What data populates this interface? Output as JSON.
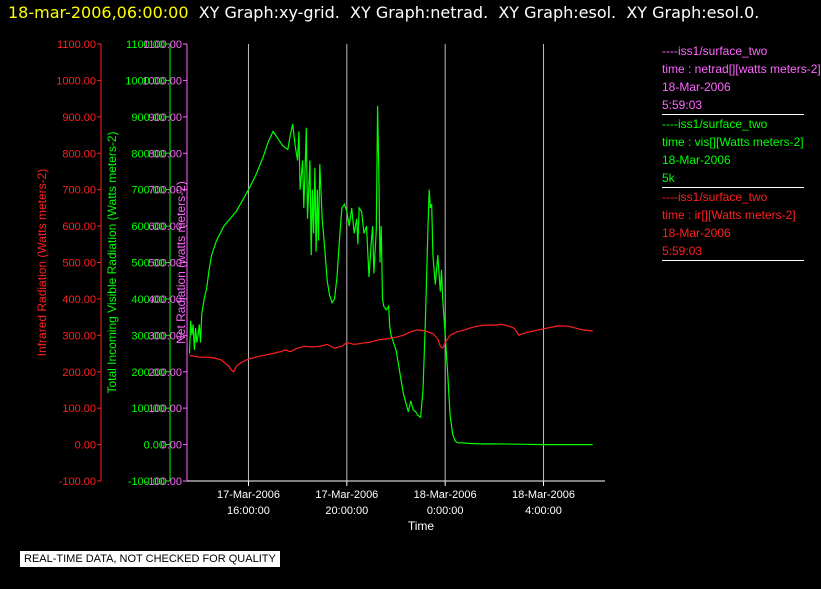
{
  "header": {
    "timestamp": "18-mar-2006,06:00:00",
    "titles": [
      "XY Graph:xy-grid.",
      "XY Graph:netrad.",
      "XY Graph:esol.",
      "XY Graph:esol.0."
    ]
  },
  "legend": {
    "entries": [
      {
        "lines": [
          "----iss1/surface_two",
          "time : netrad[][watts meters-2]",
          "18-Mar-2006",
          "5:59:03"
        ],
        "color": "#ff66ff"
      },
      {
        "lines": [
          "----iss1/surface_two",
          "time : vis[][Watts meters-2]",
          "18-Mar-2006",
          "5k"
        ],
        "color": "#00ff00"
      },
      {
        "lines": [
          "----iss1/surface_two",
          "time : ir[][Watts meters-2]",
          "18-Mar-2006",
          "5:59:03"
        ],
        "color": "#ff2020"
      }
    ]
  },
  "colors": {
    "ir": "#ff2020",
    "vis": "#00ff00",
    "netrad": "#ff66ff",
    "time_axis": "#ffffff",
    "grid": "#c0c0c0"
  },
  "notice": "REAL-TIME DATA, NOT CHECKED FOR QUALITY",
  "chart_data": {
    "type": "line",
    "xlabel": "Time",
    "x_ticks": [
      {
        "x": 16,
        "lines": [
          "17-Mar-2006",
          "16:00:00"
        ]
      },
      {
        "x": 20,
        "lines": [
          "17-Mar-2006",
          "20:00:00"
        ]
      },
      {
        "x": 24,
        "lines": [
          "18-Mar-2006",
          "0:00:00"
        ]
      },
      {
        "x": 28,
        "lines": [
          "18-Mar-2006",
          "4:00:00"
        ]
      }
    ],
    "xlim": [
      13.5,
      30.5
    ],
    "ylim": [
      -100,
      1100
    ],
    "y_ticks": [
      "-100.00",
      "0.00",
      "100.00",
      "200.00",
      "300.00",
      "400.00",
      "500.00",
      "600.00",
      "700.00",
      "800.00",
      "900.00",
      "1000.00",
      "1100.00"
    ],
    "axes": [
      {
        "id": "ir",
        "label": "Infrared Radiation (Watts meters-2)",
        "color": "#ff2020"
      },
      {
        "id": "vis",
        "label": "Total Incoming Visible Radiation (Watts meters-2)",
        "color": "#00ff00"
      },
      {
        "id": "netrad",
        "label": "Net Radiation (watts meters-2)",
        "color": "#ff66ff"
      }
    ],
    "grid": {
      "vertical": true,
      "horizontal": false
    },
    "series": [
      {
        "name": "----iss1/surface_two time : vis[][Watts meters-2]",
        "color": "#00ff00",
        "points": [
          [
            13.6,
            250
          ],
          [
            13.65,
            340
          ],
          [
            13.7,
            300
          ],
          [
            13.75,
            330
          ],
          [
            13.8,
            260
          ],
          [
            13.85,
            320
          ],
          [
            13.9,
            280
          ],
          [
            13.95,
            300
          ],
          [
            14,
            330
          ],
          [
            14.05,
            280
          ],
          [
            14.1,
            360
          ],
          [
            14.2,
            400
          ],
          [
            14.3,
            430
          ],
          [
            14.4,
            480
          ],
          [
            14.5,
            520
          ],
          [
            14.7,
            560
          ],
          [
            15,
            600
          ],
          [
            15.5,
            640
          ],
          [
            16,
            700
          ],
          [
            16.3,
            740
          ],
          [
            16.6,
            790
          ],
          [
            16.8,
            830
          ],
          [
            17,
            860
          ],
          [
            17.2,
            840
          ],
          [
            17.4,
            820
          ],
          [
            17.6,
            810
          ],
          [
            17.7,
            850
          ],
          [
            17.8,
            880
          ],
          [
            17.9,
            820
          ],
          [
            18,
            780
          ],
          [
            18.05,
            860
          ],
          [
            18.1,
            700
          ],
          [
            18.2,
            780
          ],
          [
            18.25,
            650
          ],
          [
            18.3,
            750
          ],
          [
            18.35,
            870
          ],
          [
            18.4,
            620
          ],
          [
            18.5,
            780
          ],
          [
            18.55,
            520
          ],
          [
            18.6,
            700
          ],
          [
            18.65,
            580
          ],
          [
            18.7,
            760
          ],
          [
            18.75,
            530
          ],
          [
            18.8,
            700
          ],
          [
            18.85,
            560
          ],
          [
            18.9,
            770
          ],
          [
            19,
            620
          ],
          [
            19.1,
            540
          ],
          [
            19.2,
            450
          ],
          [
            19.3,
            410
          ],
          [
            19.4,
            390
          ],
          [
            19.5,
            400
          ],
          [
            19.6,
            460
          ],
          [
            19.7,
            560
          ],
          [
            19.8,
            650
          ],
          [
            19.9,
            660
          ],
          [
            20,
            640
          ],
          [
            20.1,
            600
          ],
          [
            20.2,
            650
          ],
          [
            20.3,
            580
          ],
          [
            20.4,
            620
          ],
          [
            20.45,
            550
          ],
          [
            20.5,
            650
          ],
          [
            20.6,
            640
          ],
          [
            20.7,
            580
          ],
          [
            20.8,
            600
          ],
          [
            20.9,
            460
          ],
          [
            21,
            560
          ],
          [
            21.05,
            600
          ],
          [
            21.1,
            470
          ],
          [
            21.2,
            590
          ],
          [
            21.25,
            930
          ],
          [
            21.3,
            750
          ],
          [
            21.35,
            500
          ],
          [
            21.4,
            600
          ],
          [
            21.45,
            400
          ],
          [
            21.5,
            380
          ],
          [
            21.6,
            370
          ],
          [
            21.7,
            380
          ],
          [
            21.75,
            320
          ],
          [
            21.8,
            300
          ],
          [
            21.9,
            280
          ],
          [
            22,
            260
          ],
          [
            22.1,
            220
          ],
          [
            22.2,
            180
          ],
          [
            22.3,
            140
          ],
          [
            22.4,
            115
          ],
          [
            22.5,
            90
          ],
          [
            22.6,
            120
          ],
          [
            22.7,
            95
          ],
          [
            22.8,
            90
          ],
          [
            22.9,
            80
          ],
          [
            23,
            75
          ],
          [
            23.1,
            150
          ],
          [
            23.2,
            350
          ],
          [
            23.3,
            600
          ],
          [
            23.35,
            700
          ],
          [
            23.4,
            650
          ],
          [
            23.45,
            660
          ],
          [
            23.5,
            520
          ],
          [
            23.6,
            440
          ],
          [
            23.7,
            520
          ],
          [
            23.8,
            420
          ],
          [
            23.85,
            480
          ],
          [
            23.9,
            400
          ],
          [
            24,
            300
          ],
          [
            24.1,
            200
          ],
          [
            24.2,
            80
          ],
          [
            24.3,
            30
          ],
          [
            24.4,
            10
          ],
          [
            24.5,
            5
          ],
          [
            24.7,
            5
          ],
          [
            25,
            3
          ],
          [
            25.5,
            2
          ],
          [
            26,
            2
          ],
          [
            27,
            1
          ],
          [
            28,
            0
          ],
          [
            29,
            0
          ],
          [
            30,
            0
          ]
        ]
      },
      {
        "name": "----iss1/surface_two time : ir[][Watts meters-2]",
        "color": "#ff2020",
        "points": [
          [
            13.6,
            245
          ],
          [
            14,
            240
          ],
          [
            14.3,
            240
          ],
          [
            14.6,
            238
          ],
          [
            14.9,
            232
          ],
          [
            15.2,
            215
          ],
          [
            15.3,
            205
          ],
          [
            15.4,
            200
          ],
          [
            15.5,
            215
          ],
          [
            15.7,
            225
          ],
          [
            16,
            235
          ],
          [
            16.3,
            240
          ],
          [
            16.6,
            245
          ],
          [
            17,
            250
          ],
          [
            17.3,
            255
          ],
          [
            17.5,
            260
          ],
          [
            17.7,
            255
          ],
          [
            18,
            265
          ],
          [
            18.3,
            270
          ],
          [
            18.6,
            268
          ],
          [
            18.9,
            270
          ],
          [
            19.2,
            275
          ],
          [
            19.5,
            265
          ],
          [
            19.8,
            270
          ],
          [
            20,
            280
          ],
          [
            20.3,
            275
          ],
          [
            20.6,
            278
          ],
          [
            21,
            282
          ],
          [
            21.3,
            288
          ],
          [
            21.6,
            290
          ],
          [
            22,
            295
          ],
          [
            22.3,
            300
          ],
          [
            22.6,
            310
          ],
          [
            22.9,
            315
          ],
          [
            23.2,
            312
          ],
          [
            23.5,
            305
          ],
          [
            23.7,
            290
          ],
          [
            23.8,
            270
          ],
          [
            23.9,
            265
          ],
          [
            24,
            280
          ],
          [
            24.2,
            300
          ],
          [
            24.5,
            310
          ],
          [
            24.8,
            315
          ],
          [
            25,
            320
          ],
          [
            25.3,
            325
          ],
          [
            25.6,
            328
          ],
          [
            26,
            328
          ],
          [
            26.3,
            330
          ],
          [
            26.6,
            325
          ],
          [
            26.8,
            320
          ],
          [
            26.9,
            310
          ],
          [
            27,
            300
          ],
          [
            27.3,
            308
          ],
          [
            27.6,
            312
          ],
          [
            28,
            318
          ],
          [
            28.3,
            322
          ],
          [
            28.6,
            326
          ],
          [
            29,
            325
          ],
          [
            29.3,
            320
          ],
          [
            29.6,
            315
          ],
          [
            30,
            312
          ]
        ]
      }
    ]
  }
}
